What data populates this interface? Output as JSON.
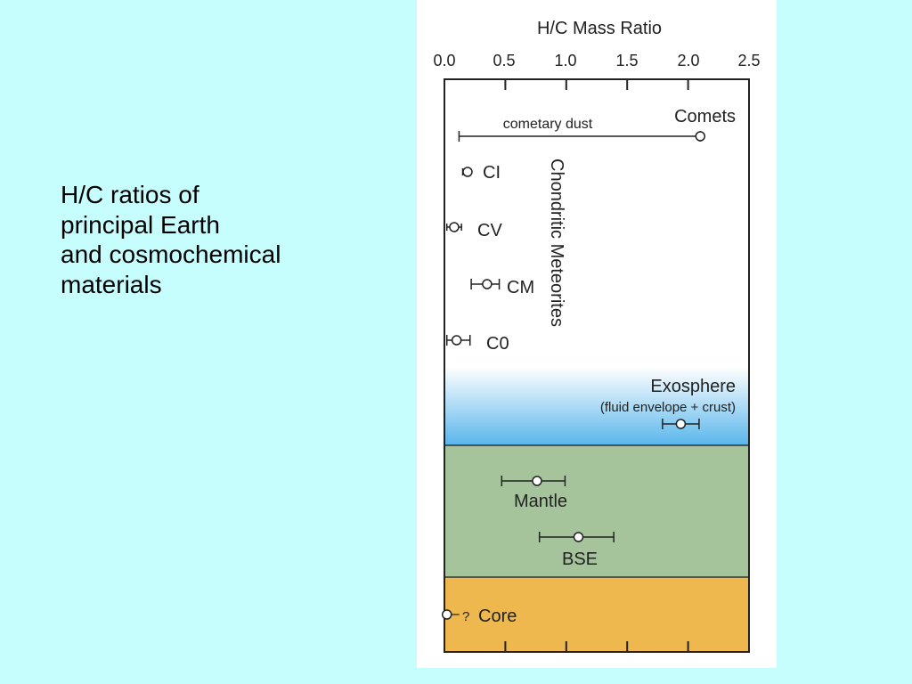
{
  "colors": {
    "background": "#c6fdfd",
    "panel": "#ffffff",
    "exosphere_top": "#ffffff",
    "exosphere_bottom": "#59b6ec",
    "mantle": "#a5c49c",
    "core": "#eeb84e"
  },
  "caption": {
    "lines": [
      "H/C ratios of",
      "principal Earth",
      "and cosmochemical",
      "materials"
    ]
  },
  "chart_data": {
    "type": "scatter",
    "title": "H/C Mass Ratio",
    "xlim": [
      0.0,
      2.5
    ],
    "xticks": [
      0.0,
      0.5,
      1.0,
      1.5,
      2.0,
      2.5
    ],
    "xtick_labels": [
      "0.0",
      "0.5",
      "1.0",
      "1.5",
      "2.0",
      "2.5"
    ],
    "group_label": "Chondritic Meteorites",
    "regions": [
      {
        "name": "Exosphere",
        "sublabel": "(fluid envelope + crust)",
        "fill": "gradient"
      },
      {
        "name": "Mantle",
        "fill": "mantle"
      },
      {
        "name": "Core",
        "fill": "core"
      }
    ],
    "points": [
      {
        "label": "Comets",
        "value": 2.1,
        "low": 0.12,
        "high": 2.1,
        "range_label": "cometary dust"
      },
      {
        "label": "CI",
        "value": 0.19,
        "low": 0.15,
        "high": 0.2
      },
      {
        "label": "CV",
        "value": 0.08,
        "low": 0.02,
        "high": 0.14
      },
      {
        "label": "CM",
        "value": 0.35,
        "low": 0.22,
        "high": 0.45
      },
      {
        "label": "C0",
        "value": 0.1,
        "low": 0.02,
        "high": 0.21
      },
      {
        "label": "",
        "value": 1.94,
        "low": 1.79,
        "high": 2.09
      },
      {
        "label": "",
        "value": 0.76,
        "low": 0.47,
        "high": 0.99
      },
      {
        "label": "BSE",
        "value": 1.1,
        "low": 0.78,
        "high": 1.39
      },
      {
        "label": "?",
        "value": 0.02
      }
    ]
  }
}
